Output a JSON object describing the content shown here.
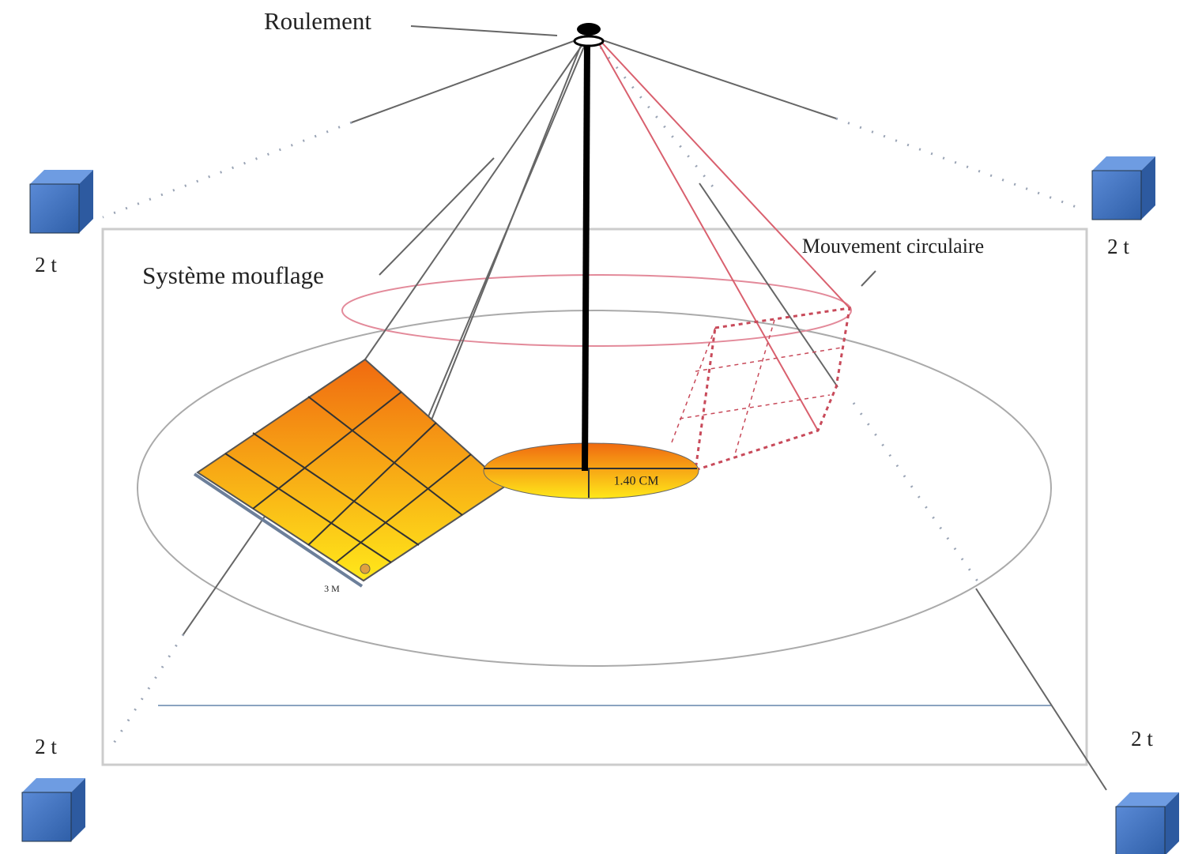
{
  "labels": {
    "bearing": "Roulement",
    "pulley_system": "Système mouflage",
    "circular_motion": "Mouvement circulaire"
  },
  "weights": [
    "2 t",
    "2 t",
    "2 t",
    "2 t"
  ],
  "dimensions": {
    "disc": "1.40 CM",
    "panel": "3 M"
  }
}
